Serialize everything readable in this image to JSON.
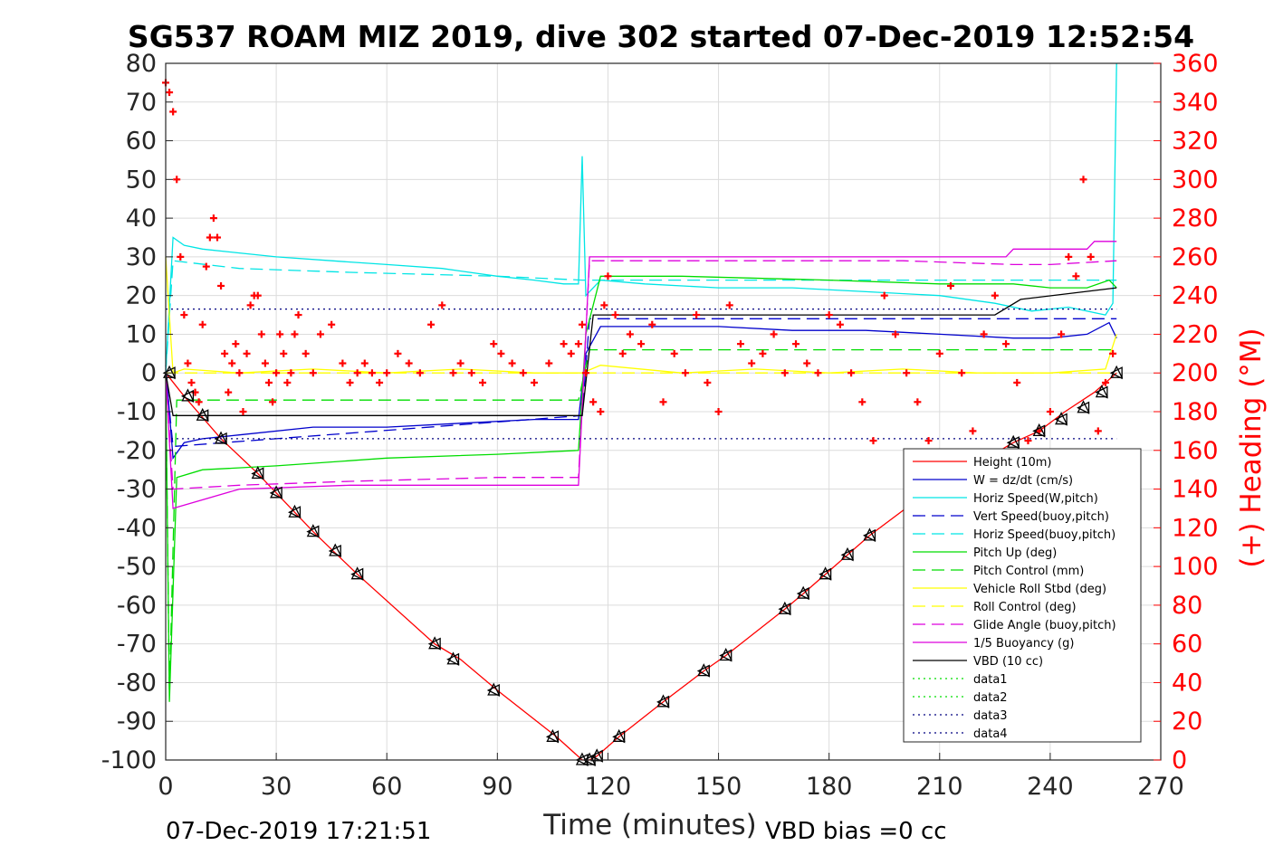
{
  "chart_data": {
    "type": "line",
    "title": "SG537 ROAM MIZ 2019, dive 302 started 07-Dec-2019 12:52:54",
    "xlabel": "Time (minutes)",
    "ylabel": "",
    "ylabel_right": "(+) Heading (°M)",
    "xlim": [
      0,
      270
    ],
    "ylim": [
      -100,
      80
    ],
    "ylim_right": [
      0,
      360
    ],
    "xticks": [
      "0",
      "30",
      "60",
      "90",
      "120",
      "150",
      "180",
      "210",
      "240",
      "270"
    ],
    "yticks": [
      "80",
      "70",
      "60",
      "50",
      "40",
      "30",
      "20",
      "10",
      "0",
      "-10",
      "-20",
      "-30",
      "-40",
      "-50",
      "-60",
      "-70",
      "-80",
      "-90",
      "-100"
    ],
    "yticks_right": [
      "360",
      "340",
      "320",
      "300",
      "280",
      "260",
      "240",
      "220",
      "200",
      "180",
      "160",
      "140",
      "120",
      "100",
      "80",
      "60",
      "40",
      "20",
      "0"
    ],
    "grid": true,
    "legend_position": "bottom-right",
    "annotations": {
      "end_time": "07-Dec-2019 17:21:51",
      "vbd_bias": "VBD bias =0 cc"
    },
    "colors": {
      "red": "#ff0000",
      "blue": "#0000cc",
      "cyan": "#00e5e5",
      "green": "#00dd00",
      "yellow": "#ffff00",
      "magenta": "#dd00dd",
      "black": "#000000",
      "navy": "#000080"
    },
    "series": [
      {
        "name": "Height (10m)",
        "color": "#ff0000",
        "dash": "",
        "x": [
          0,
          5,
          15,
          25,
          30,
          40,
          52,
          73,
          80,
          90,
          106,
          113,
          115,
          117,
          123,
          135,
          146,
          152,
          168,
          173,
          179,
          185,
          191,
          205,
          230,
          237,
          244,
          252,
          258
        ],
        "y": [
          0,
          -6,
          -17,
          -26,
          -31,
          -41,
          -52,
          -70,
          -74,
          -82,
          -94,
          -100,
          -100,
          -99,
          -94,
          -85,
          -77,
          -73,
          -61,
          -57,
          -52,
          -47,
          -42,
          -32,
          -18,
          -15,
          -10,
          -5,
          0
        ]
      },
      {
        "name": "W = dz/dt (cm/s)",
        "color": "#0000cc",
        "dash": "",
        "x": [
          0,
          2,
          5,
          10,
          20,
          40,
          60,
          80,
          100,
          112,
          114,
          118,
          130,
          150,
          170,
          190,
          210,
          230,
          240,
          250,
          256,
          258
        ],
        "y": [
          2,
          -22,
          -18,
          -17,
          -16,
          -14,
          -14,
          -13,
          -12,
          -12,
          5,
          12,
          12,
          12,
          11,
          11,
          10,
          9,
          9,
          10,
          13,
          9
        ]
      },
      {
        "name": "Horiz Speed(W,pitch)",
        "color": "#00e5e5",
        "dash": "",
        "x": [
          0,
          2,
          5,
          10,
          20,
          30,
          45,
          60,
          75,
          90,
          100,
          108,
          112,
          113,
          114,
          118,
          130,
          150,
          170,
          190,
          210,
          225,
          235,
          245,
          255,
          257,
          258
        ],
        "y": [
          0,
          35,
          33,
          32,
          31,
          30,
          29,
          28,
          27,
          25,
          24,
          23,
          23,
          56,
          20,
          24,
          23,
          22,
          22,
          21,
          20,
          18,
          16,
          17,
          15,
          18,
          80
        ]
      },
      {
        "name": "Vert Speed(buoy,pitch)",
        "color": "#0000cc",
        "dash": "14,7",
        "x": [
          0,
          2,
          113,
          115,
          258
        ],
        "y": [
          0,
          -19,
          -11,
          14,
          14
        ]
      },
      {
        "name": "Horiz Speed(buoy,pitch)",
        "color": "#00e5e5",
        "dash": "14,7",
        "x": [
          0,
          2,
          20,
          50,
          90,
          113,
          118,
          150,
          200,
          258
        ],
        "y": [
          0,
          29,
          27,
          26,
          25,
          24,
          24,
          24,
          24,
          24
        ]
      },
      {
        "name": "Pitch Up (deg)",
        "color": "#00dd00",
        "dash": "",
        "x": [
          0,
          1,
          3,
          10,
          30,
          60,
          90,
          112,
          114,
          118,
          140,
          180,
          210,
          230,
          240,
          250,
          256,
          258
        ],
        "y": [
          0,
          -85,
          -27,
          -25,
          -24,
          -22,
          -21,
          -20,
          10,
          25,
          25,
          24,
          23,
          23,
          22,
          22,
          24,
          22
        ]
      },
      {
        "name": "Pitch Control (mm)",
        "color": "#00dd00",
        "dash": "14,7",
        "x": [
          0,
          1,
          3,
          112,
          115,
          258
        ],
        "y": [
          0,
          -83,
          -7,
          -7,
          6,
          6
        ]
      },
      {
        "name": "Vehicle Roll Stbd (deg)",
        "color": "#ffff00",
        "dash": "",
        "x": [
          0,
          2,
          5,
          20,
          40,
          60,
          80,
          100,
          113,
          118,
          140,
          160,
          180,
          200,
          220,
          240,
          255,
          258
        ],
        "y": [
          30,
          0,
          1,
          0,
          1,
          0,
          1,
          0,
          0,
          2,
          0,
          1,
          0,
          1,
          0,
          0,
          1,
          10
        ]
      },
      {
        "name": "Roll Control (deg)",
        "color": "#ffff00",
        "dash": "14,7",
        "x": [
          0,
          258
        ],
        "y": [
          0,
          0
        ]
      },
      {
        "name": "Glide Angle (buoy,pitch)",
        "color": "#dd00dd",
        "dash": "14,7",
        "x": [
          0,
          2,
          20,
          50,
          90,
          112,
          115,
          150,
          200,
          230,
          240,
          258
        ],
        "y": [
          0,
          -30,
          -29,
          -28,
          -27,
          -27,
          29,
          29,
          29,
          28,
          28,
          29
        ]
      },
      {
        "name": "1/5 Buoyancy (g)",
        "color": "#dd00dd",
        "dash": "",
        "x": [
          0,
          2,
          20,
          50,
          112,
          115,
          150,
          200,
          228,
          230,
          250,
          252,
          258
        ],
        "y": [
          0,
          -35,
          -30,
          -29,
          -29,
          30,
          30,
          30,
          30,
          32,
          32,
          34,
          34
        ]
      },
      {
        "name": "VBD (10 cc)",
        "color": "#000000",
        "dash": "",
        "x": [
          0,
          2,
          113,
          116,
          225,
          232,
          258
        ],
        "y": [
          0,
          -11,
          -11,
          15,
          15,
          19,
          22
        ]
      },
      {
        "name": "data1",
        "color": "#00dd00",
        "dash": "2,4",
        "x": [],
        "y": []
      },
      {
        "name": "data2",
        "color": "#00dd00",
        "dash": "2,4",
        "x": [],
        "y": []
      },
      {
        "name": "data3",
        "color": "#000080",
        "dash": "2,4",
        "x": [
          0,
          258
        ],
        "y": [
          -17,
          -17
        ]
      },
      {
        "name": "data4",
        "color": "#000080",
        "dash": "2,4",
        "x": [
          0,
          258
        ],
        "y": [
          16.5,
          16.5
        ]
      }
    ],
    "heading_points": {
      "axis": "right",
      "marker": "+",
      "color": "#ff0000",
      "x": [
        0,
        1,
        2,
        3,
        4,
        5,
        6,
        7,
        8,
        9,
        10,
        11,
        12,
        13,
        14,
        15,
        16,
        17,
        18,
        19,
        20,
        21,
        22,
        23,
        24,
        25,
        26,
        27,
        28,
        29,
        30,
        31,
        32,
        33,
        34,
        35,
        36,
        38,
        40,
        42,
        45,
        48,
        50,
        52,
        54,
        56,
        58,
        60,
        63,
        66,
        69,
        72,
        75,
        78,
        80,
        83,
        86,
        89,
        91,
        94,
        97,
        100,
        104,
        108,
        110,
        112,
        113,
        114,
        116,
        118,
        119,
        120,
        122,
        124,
        126,
        129,
        132,
        135,
        138,
        141,
        144,
        147,
        150,
        153,
        156,
        159,
        162,
        165,
        168,
        171,
        174,
        177,
        180,
        183,
        186,
        189,
        192,
        195,
        198,
        201,
        204,
        207,
        210,
        213,
        216,
        219,
        222,
        225,
        228,
        231,
        234,
        237,
        240,
        243,
        245,
        247,
        249,
        251,
        253,
        255,
        257
      ],
      "y": [
        350,
        345,
        335,
        300,
        260,
        230,
        205,
        195,
        190,
        185,
        225,
        255,
        270,
        280,
        270,
        245,
        210,
        190,
        205,
        215,
        200,
        180,
        210,
        235,
        240,
        240,
        220,
        205,
        195,
        185,
        200,
        220,
        210,
        195,
        200,
        220,
        230,
        210,
        200,
        220,
        225,
        205,
        195,
        200,
        205,
        200,
        195,
        200,
        210,
        205,
        200,
        225,
        235,
        200,
        205,
        200,
        195,
        215,
        210,
        205,
        200,
        195,
        205,
        215,
        210,
        215,
        225,
        200,
        185,
        180,
        235,
        250,
        230,
        210,
        220,
        215,
        225,
        185,
        210,
        200,
        230,
        195,
        180,
        235,
        215,
        205,
        210,
        220,
        200,
        215,
        205,
        200,
        230,
        225,
        200,
        185,
        165,
        240,
        220,
        200,
        185,
        165,
        210,
        245,
        200,
        170,
        220,
        240,
        215,
        195,
        165,
        170,
        180,
        220,
        260,
        250,
        300,
        260,
        170,
        195,
        210
      ]
    },
    "triangle_markers": {
      "x": [
        1,
        6,
        10,
        15,
        25,
        30,
        35,
        40,
        46,
        52,
        73,
        78,
        89,
        105,
        113,
        115,
        117,
        123,
        135,
        146,
        152,
        168,
        173,
        179,
        185,
        191,
        230,
        237,
        243,
        249,
        254,
        258
      ],
      "y": [
        0,
        -6,
        -11,
        -17,
        -26,
        -31,
        -36,
        -41,
        -46,
        -52,
        -70,
        -74,
        -82,
        -94,
        -100,
        -100,
        -99,
        -94,
        -85,
        -77,
        -73,
        -61,
        -57,
        -52,
        -47,
        -42,
        -18,
        -15,
        -12,
        -9,
        -5,
        0
      ]
    }
  }
}
